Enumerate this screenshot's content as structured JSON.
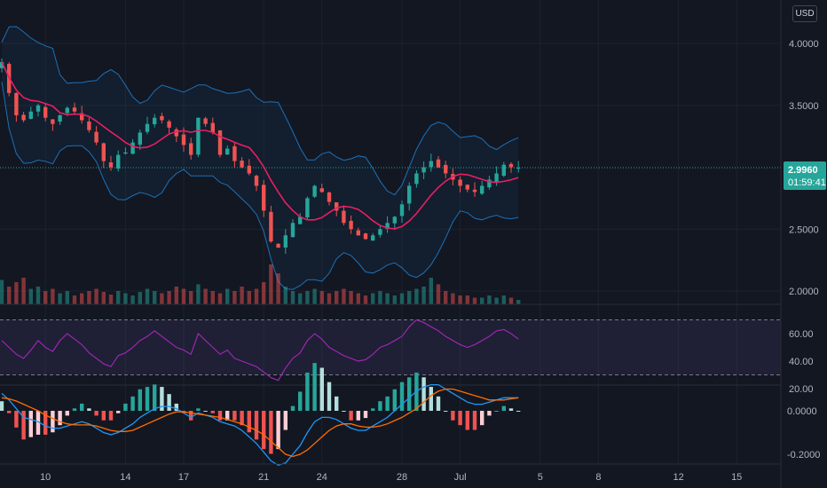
{
  "currency_button": "USD",
  "price_axis": {
    "ticks": [
      {
        "label": "4.0000",
        "value": 4.0
      },
      {
        "label": "3.5000",
        "value": 3.5
      },
      {
        "label": "2.5000",
        "value": 2.5
      },
      {
        "label": "2.0000",
        "value": 2.0
      }
    ],
    "current_price_label": "2.9960",
    "countdown_label": "01:59:41",
    "current_price": 2.996
  },
  "rsi_axis": {
    "ticks": [
      {
        "label": "60.00",
        "value": 60
      },
      {
        "label": "40.00",
        "value": 40
      },
      {
        "label": "20.00",
        "value": 20
      }
    ],
    "upper_band": 70,
    "lower_band": 30
  },
  "macd_axis": {
    "ticks": [
      {
        "label": "0.0000",
        "value": 0
      },
      {
        "label": "-0.2000",
        "value": -0.2
      }
    ]
  },
  "time_axis": {
    "ticks": [
      {
        "label": "10",
        "bar": 6
      },
      {
        "label": "14",
        "bar": 17
      },
      {
        "label": "17",
        "bar": 25
      },
      {
        "label": "21",
        "bar": 36
      },
      {
        "label": "24",
        "bar": 44
      },
      {
        "label": "28",
        "bar": 55
      },
      {
        "label": "Jul",
        "bar": 63
      },
      {
        "label": "5",
        "bar": 74
      },
      {
        "label": "8",
        "bar": 82
      },
      {
        "label": "12",
        "bar": 93
      },
      {
        "label": "15",
        "bar": 101
      }
    ]
  },
  "colors": {
    "up": "#26a69a",
    "down": "#ef5350",
    "ma": "#e91e63",
    "bands": "#2196f3",
    "rsi": "#9c27b0",
    "macd": "#2962ff",
    "signal": "#ff6d00",
    "price_tag": "#26a69a"
  },
  "chart_data": {
    "type": "candlestick",
    "bars_per_day": 3,
    "price_closes": [
      3.85,
      3.6,
      3.42,
      3.38,
      3.45,
      3.5,
      3.4,
      3.35,
      3.42,
      3.48,
      3.45,
      3.38,
      3.3,
      3.2,
      3.05,
      3.0,
      3.1,
      3.12,
      3.2,
      3.28,
      3.35,
      3.4,
      3.38,
      3.32,
      3.25,
      3.18,
      3.1,
      3.4,
      3.35,
      3.28,
      3.1,
      3.15,
      3.05,
      3.0,
      2.95,
      2.85,
      2.65,
      2.4,
      2.35,
      2.45,
      2.55,
      2.6,
      2.75,
      2.85,
      2.8,
      2.72,
      2.65,
      2.55,
      2.5,
      2.45,
      2.42,
      2.45,
      2.5,
      2.55,
      2.6,
      2.7,
      2.85,
      2.95,
      3.0,
      3.05,
      3.0,
      2.95,
      2.9,
      2.85,
      2.82,
      2.8,
      2.85,
      2.9,
      2.95,
      3.02,
      3.0,
      2.996
    ],
    "volume": [
      0.55,
      0.4,
      0.5,
      0.6,
      0.35,
      0.4,
      0.3,
      0.35,
      0.25,
      0.3,
      0.2,
      0.25,
      0.3,
      0.35,
      0.28,
      0.22,
      0.3,
      0.25,
      0.2,
      0.28,
      0.35,
      0.3,
      0.25,
      0.3,
      0.4,
      0.35,
      0.3,
      0.45,
      0.35,
      0.3,
      0.25,
      0.35,
      0.3,
      0.4,
      0.3,
      0.35,
      0.5,
      0.9,
      0.7,
      0.4,
      0.3,
      0.25,
      0.3,
      0.35,
      0.3,
      0.25,
      0.3,
      0.35,
      0.3,
      0.25,
      0.2,
      0.25,
      0.3,
      0.25,
      0.2,
      0.25,
      0.3,
      0.35,
      0.4,
      0.6,
      0.45,
      0.3,
      0.25,
      0.2,
      0.2,
      0.15,
      0.15,
      0.2,
      0.15,
      0.2,
      0.15,
      0.1
    ],
    "rsi": [
      55,
      50,
      45,
      42,
      48,
      55,
      50,
      47,
      55,
      60,
      56,
      52,
      46,
      42,
      38,
      36,
      44,
      46,
      50,
      55,
      58,
      62,
      58,
      54,
      50,
      48,
      45,
      60,
      55,
      50,
      45,
      48,
      42,
      40,
      38,
      36,
      32,
      28,
      26,
      35,
      42,
      46,
      55,
      60,
      56,
      50,
      47,
      44,
      42,
      40,
      41,
      45,
      50,
      52,
      55,
      58,
      65,
      70,
      68,
      65,
      62,
      58,
      55,
      52,
      50,
      52,
      55,
      58,
      62,
      63,
      60,
      56
    ],
    "macd": [
      0.08,
      0.05,
      0.01,
      -0.03,
      -0.04,
      -0.05,
      -0.07,
      -0.08,
      -0.08,
      -0.07,
      -0.06,
      -0.05,
      -0.06,
      -0.08,
      -0.1,
      -0.11,
      -0.1,
      -0.08,
      -0.06,
      -0.03,
      -0.01,
      0.01,
      0.02,
      0.02,
      0.01,
      -0.01,
      -0.03,
      -0.01,
      -0.02,
      -0.03,
      -0.05,
      -0.06,
      -0.07,
      -0.09,
      -0.12,
      -0.15,
      -0.19,
      -0.23,
      -0.25,
      -0.24,
      -0.2,
      -0.16,
      -0.1,
      -0.05,
      -0.03,
      -0.03,
      -0.04,
      -0.06,
      -0.08,
      -0.09,
      -0.09,
      -0.07,
      -0.05,
      -0.03,
      0.0,
      0.03,
      0.06,
      0.09,
      0.11,
      0.12,
      0.12,
      0.1,
      0.08,
      0.06,
      0.04,
      0.03,
      0.03,
      0.04,
      0.05,
      0.06,
      0.06,
      0.06
    ],
    "signal": [
      0.06,
      0.055,
      0.045,
      0.03,
      0.015,
      0.0,
      -0.02,
      -0.035,
      -0.05,
      -0.06,
      -0.065,
      -0.065,
      -0.065,
      -0.07,
      -0.08,
      -0.09,
      -0.095,
      -0.095,
      -0.09,
      -0.075,
      -0.06,
      -0.045,
      -0.03,
      -0.015,
      -0.005,
      -0.005,
      -0.01,
      -0.015,
      -0.02,
      -0.025,
      -0.03,
      -0.04,
      -0.05,
      -0.06,
      -0.075,
      -0.09,
      -0.11,
      -0.14,
      -0.17,
      -0.2,
      -0.21,
      -0.2,
      -0.18,
      -0.15,
      -0.12,
      -0.09,
      -0.07,
      -0.06,
      -0.06,
      -0.07,
      -0.075,
      -0.075,
      -0.07,
      -0.06,
      -0.045,
      -0.03,
      -0.01,
      0.01,
      0.04,
      0.07,
      0.09,
      0.1,
      0.1,
      0.09,
      0.08,
      0.07,
      0.06,
      0.05,
      0.05,
      0.05,
      0.055,
      0.06
    ]
  }
}
